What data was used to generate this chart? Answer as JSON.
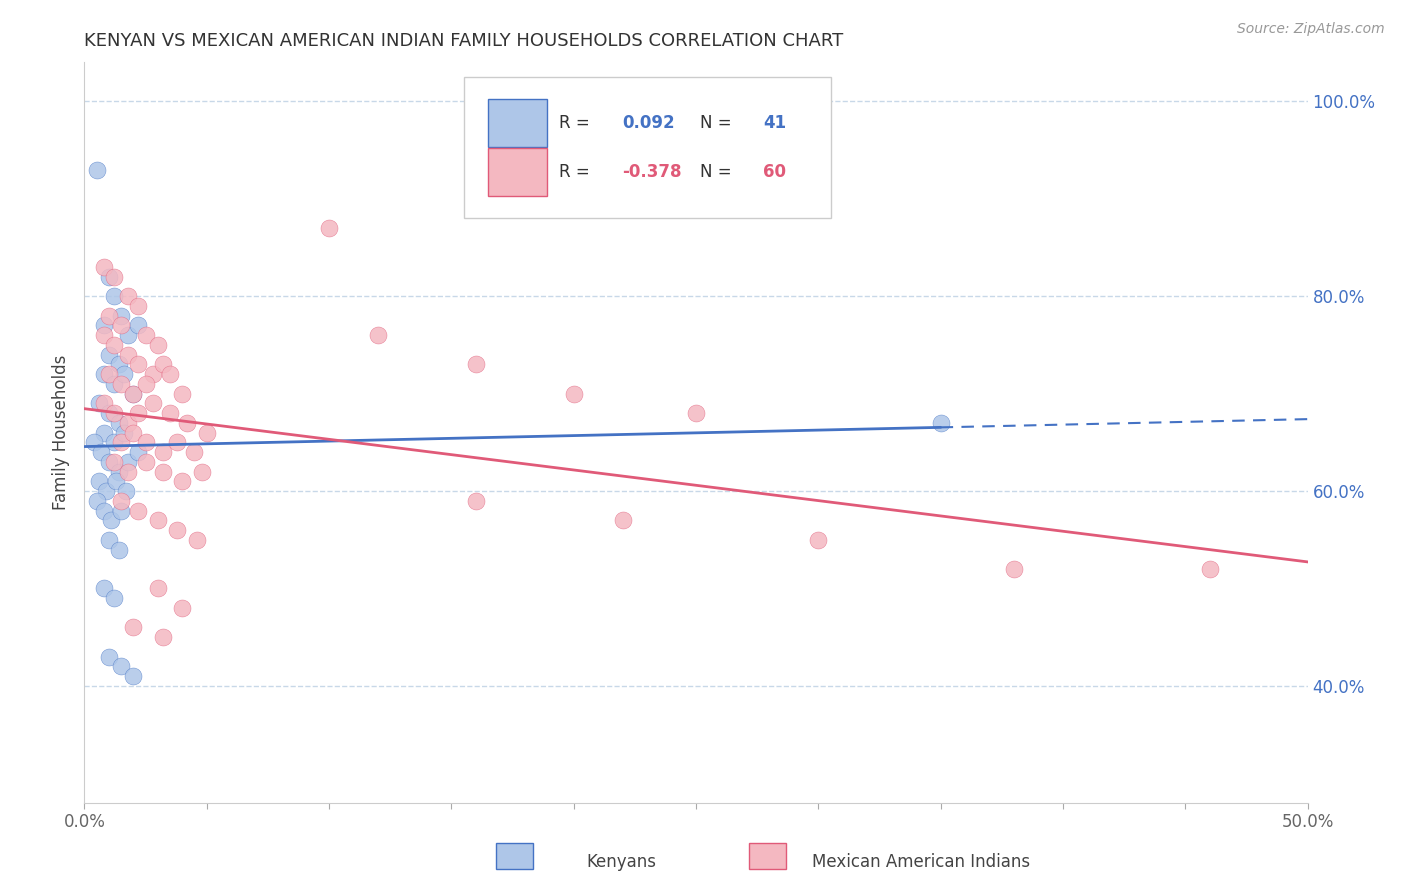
{
  "title": "KENYAN VS MEXICAN AMERICAN INDIAN FAMILY HOUSEHOLDS CORRELATION CHART",
  "source": "Source: ZipAtlas.com",
  "ylabel": "Family Households",
  "xlim": [
    0.0,
    0.5
  ],
  "ylim": [
    0.28,
    1.04
  ],
  "xticks": [
    0.0,
    0.05,
    0.1,
    0.15,
    0.2,
    0.25,
    0.3,
    0.35,
    0.4,
    0.45,
    0.5
  ],
  "xticklabels": [
    "0.0%",
    "",
    "",
    "",
    "",
    "",
    "",
    "",
    "",
    "",
    "50.0%"
  ],
  "yticks_right": [
    0.4,
    0.6,
    0.8,
    1.0
  ],
  "yticklabels_right": [
    "40.0%",
    "60.0%",
    "80.0%",
    "100.0%"
  ],
  "blue_color": "#aec6e8",
  "pink_color": "#f4b8c1",
  "blue_line_color": "#4472c4",
  "pink_line_color": "#e05a78",
  "dashed_line_color": "#c8d8e8",
  "background_color": "#ffffff",
  "kenyan_points": [
    [
      0.005,
      0.93
    ],
    [
      0.01,
      0.82
    ],
    [
      0.012,
      0.8
    ],
    [
      0.008,
      0.77
    ],
    [
      0.015,
      0.78
    ],
    [
      0.018,
      0.76
    ],
    [
      0.022,
      0.77
    ],
    [
      0.01,
      0.74
    ],
    [
      0.014,
      0.73
    ],
    [
      0.008,
      0.72
    ],
    [
      0.012,
      0.71
    ],
    [
      0.016,
      0.72
    ],
    [
      0.02,
      0.7
    ],
    [
      0.006,
      0.69
    ],
    [
      0.01,
      0.68
    ],
    [
      0.014,
      0.67
    ],
    [
      0.008,
      0.66
    ],
    [
      0.012,
      0.65
    ],
    [
      0.016,
      0.66
    ],
    [
      0.004,
      0.65
    ],
    [
      0.007,
      0.64
    ],
    [
      0.01,
      0.63
    ],
    [
      0.014,
      0.62
    ],
    [
      0.018,
      0.63
    ],
    [
      0.022,
      0.64
    ],
    [
      0.006,
      0.61
    ],
    [
      0.009,
      0.6
    ],
    [
      0.013,
      0.61
    ],
    [
      0.017,
      0.6
    ],
    [
      0.005,
      0.59
    ],
    [
      0.008,
      0.58
    ],
    [
      0.011,
      0.57
    ],
    [
      0.015,
      0.58
    ],
    [
      0.01,
      0.55
    ],
    [
      0.014,
      0.54
    ],
    [
      0.008,
      0.5
    ],
    [
      0.012,
      0.49
    ],
    [
      0.01,
      0.43
    ],
    [
      0.015,
      0.42
    ],
    [
      0.02,
      0.41
    ],
    [
      0.35,
      0.67
    ]
  ],
  "mexican_points": [
    [
      0.008,
      0.83
    ],
    [
      0.012,
      0.82
    ],
    [
      0.018,
      0.8
    ],
    [
      0.022,
      0.79
    ],
    [
      0.01,
      0.78
    ],
    [
      0.015,
      0.77
    ],
    [
      0.025,
      0.76
    ],
    [
      0.03,
      0.75
    ],
    [
      0.008,
      0.76
    ],
    [
      0.012,
      0.75
    ],
    [
      0.018,
      0.74
    ],
    [
      0.022,
      0.73
    ],
    [
      0.028,
      0.72
    ],
    [
      0.032,
      0.73
    ],
    [
      0.01,
      0.72
    ],
    [
      0.015,
      0.71
    ],
    [
      0.02,
      0.7
    ],
    [
      0.025,
      0.71
    ],
    [
      0.035,
      0.72
    ],
    [
      0.04,
      0.7
    ],
    [
      0.008,
      0.69
    ],
    [
      0.012,
      0.68
    ],
    [
      0.018,
      0.67
    ],
    [
      0.022,
      0.68
    ],
    [
      0.028,
      0.69
    ],
    [
      0.035,
      0.68
    ],
    [
      0.042,
      0.67
    ],
    [
      0.05,
      0.66
    ],
    [
      0.015,
      0.65
    ],
    [
      0.02,
      0.66
    ],
    [
      0.025,
      0.65
    ],
    [
      0.032,
      0.64
    ],
    [
      0.038,
      0.65
    ],
    [
      0.045,
      0.64
    ],
    [
      0.012,
      0.63
    ],
    [
      0.018,
      0.62
    ],
    [
      0.025,
      0.63
    ],
    [
      0.032,
      0.62
    ],
    [
      0.04,
      0.61
    ],
    [
      0.048,
      0.62
    ],
    [
      0.015,
      0.59
    ],
    [
      0.022,
      0.58
    ],
    [
      0.03,
      0.57
    ],
    [
      0.038,
      0.56
    ],
    [
      0.046,
      0.55
    ],
    [
      0.03,
      0.5
    ],
    [
      0.04,
      0.48
    ],
    [
      0.02,
      0.46
    ],
    [
      0.032,
      0.45
    ],
    [
      0.1,
      0.87
    ],
    [
      0.12,
      0.76
    ],
    [
      0.16,
      0.73
    ],
    [
      0.2,
      0.7
    ],
    [
      0.25,
      0.68
    ],
    [
      0.16,
      0.59
    ],
    [
      0.22,
      0.57
    ],
    [
      0.3,
      0.55
    ],
    [
      0.38,
      0.52
    ],
    [
      0.46,
      0.52
    ]
  ]
}
